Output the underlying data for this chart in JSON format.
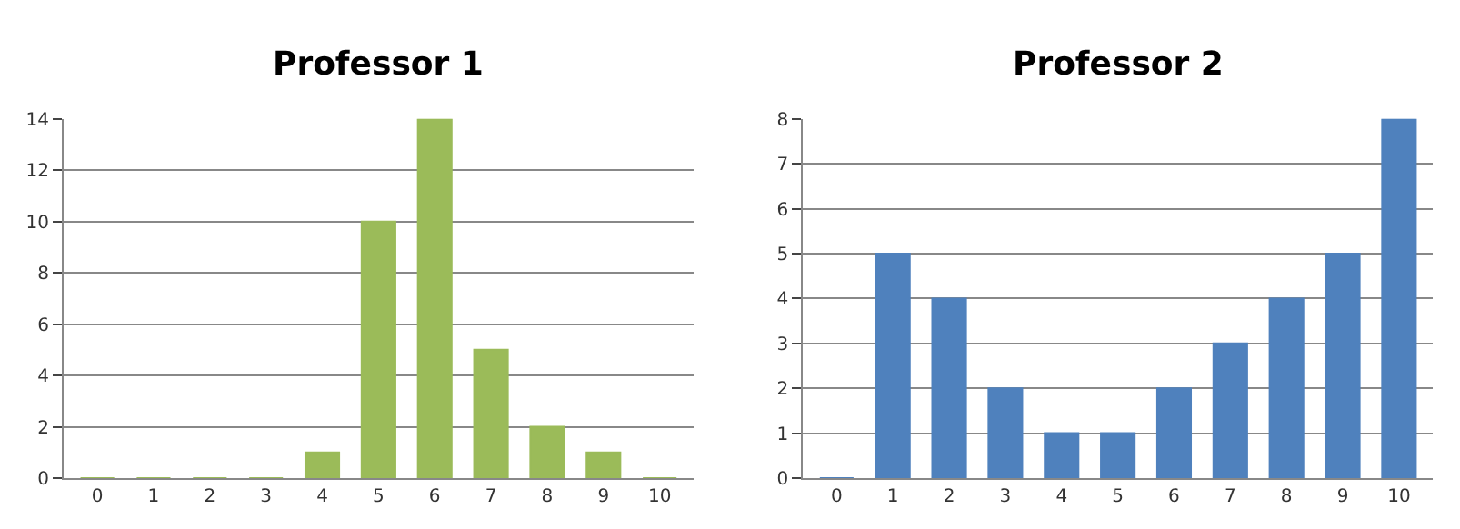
{
  "chart_data": [
    {
      "type": "bar",
      "title": "Professor 1",
      "categories": [
        "0",
        "1",
        "2",
        "3",
        "4",
        "5",
        "6",
        "7",
        "8",
        "9",
        "10"
      ],
      "values": [
        0,
        0,
        0,
        0,
        1,
        10,
        14,
        5,
        2,
        1,
        0
      ],
      "color": "#9bbb59",
      "ylim": [
        0,
        14
      ],
      "yticks": [
        0,
        2,
        4,
        6,
        8,
        10,
        12,
        14
      ],
      "grid": "y"
    },
    {
      "type": "bar",
      "title": "Professor 2",
      "categories": [
        "0",
        "1",
        "2",
        "3",
        "4",
        "5",
        "6",
        "7",
        "8",
        "9",
        "10"
      ],
      "values": [
        0,
        5,
        4,
        2,
        1,
        1,
        2,
        3,
        4,
        5,
        8
      ],
      "color": "#4f81bd",
      "ylim": [
        0,
        8
      ],
      "yticks": [
        0,
        1,
        2,
        3,
        4,
        5,
        6,
        7,
        8
      ],
      "grid": "y"
    }
  ]
}
